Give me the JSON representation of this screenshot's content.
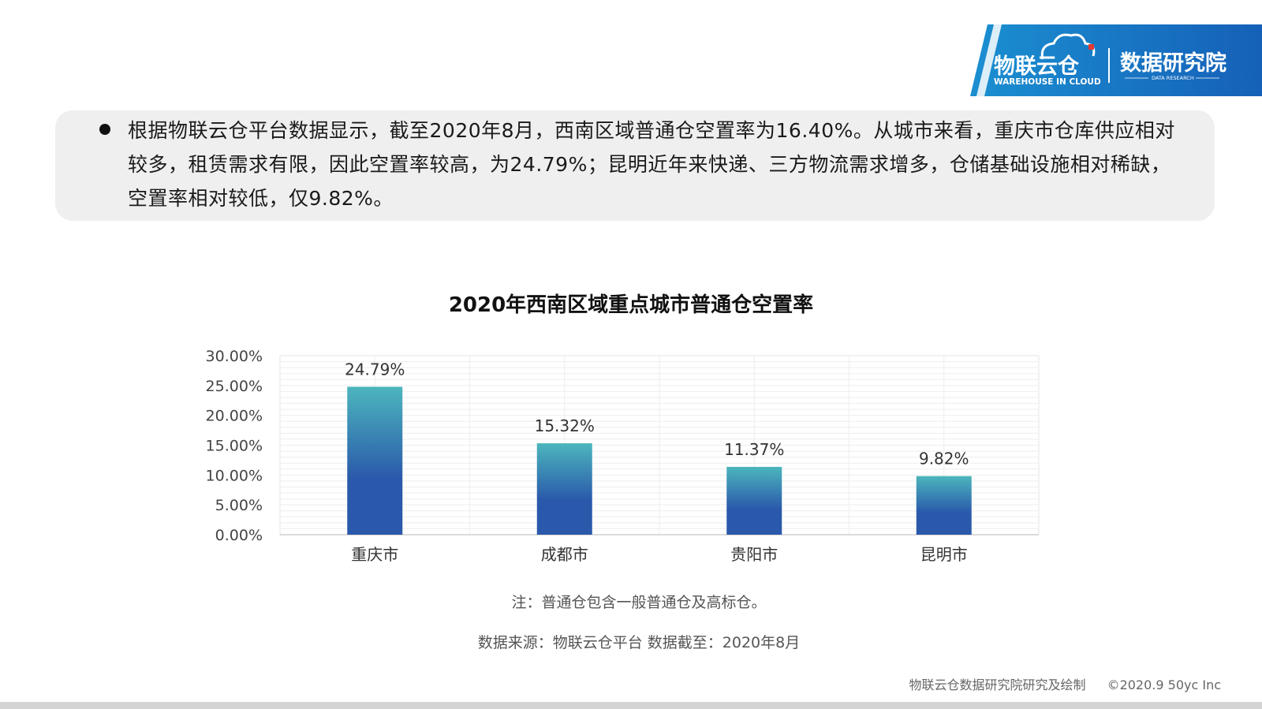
{
  "logo": {
    "name_cn": "物联云仓",
    "name_en": "WAREHOUSE IN CLOUD",
    "dept_cn": "数据研究院",
    "dept_en": "DATA RESEARCH"
  },
  "summary": {
    "text": "根据物联云仓平台数据显示，截至2020年8月，西南区域普通仓空置率为16.40%。从城市来看，重庆市仓库供应相对较多，租赁需求有限，因此空置率较高，为24.79%；昆明近年来快递、三方物流需求增多，仓储基础设施相对稀缺，空置率相对较低，仅9.82%。"
  },
  "chart_data": {
    "type": "bar",
    "title": "2020年西南区域重点城市普通仓空置率",
    "categories": [
      "重庆市",
      "成都市",
      "贵阳市",
      "昆明市"
    ],
    "values": [
      24.79,
      15.32,
      11.37,
      9.82
    ],
    "value_labels": [
      "24.79%",
      "15.32%",
      "11.37%",
      "9.82%"
    ],
    "yticks": [
      "0.00%",
      "5.00%",
      "10.00%",
      "15.00%",
      "20.00%",
      "25.00%",
      "30.00%"
    ],
    "ylim": [
      0,
      30
    ],
    "xlabel": "",
    "ylabel": "",
    "grid": true,
    "bar_color_top": "#4cb6bd",
    "bar_color_bottom": "#2a59ab"
  },
  "note": "注：普通仓包含一般普通仓及高标仓。",
  "source": "数据来源：物联云仓平台 数据截至：2020年8月",
  "footer": {
    "credit": "物联云仓数据研究院研究及绘制",
    "copyright": "©2020.9 50yc Inc"
  },
  "colors": {
    "brand_blue": "#1565c0",
    "brand_red": "#e53935",
    "summary_bg": "#efefef"
  }
}
